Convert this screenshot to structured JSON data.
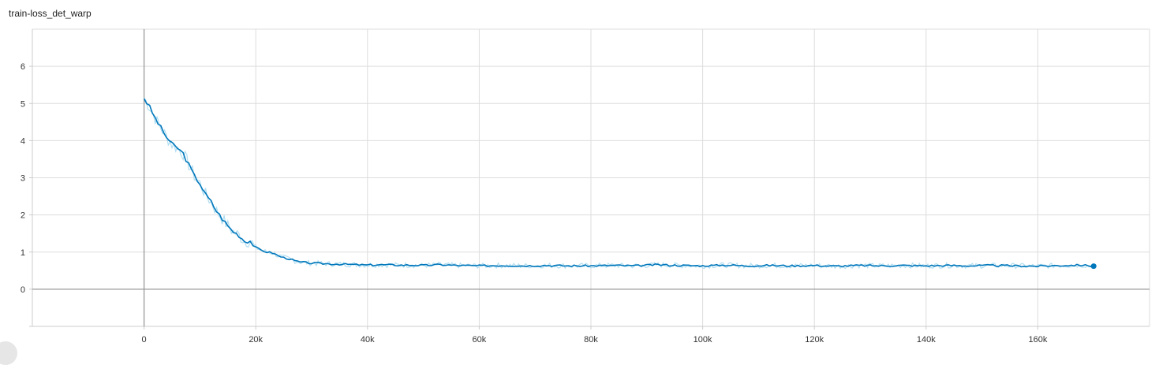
{
  "chart_data": {
    "type": "line",
    "title": "train-loss_det_warp",
    "xlabel": "",
    "ylabel": "",
    "xlim": [
      -20000,
      180000
    ],
    "ylim": [
      -1,
      7
    ],
    "grid": true,
    "x_ticks": [
      0,
      20000,
      40000,
      60000,
      80000,
      100000,
      120000,
      140000,
      160000
    ],
    "x_tick_labels": [
      "0",
      "20k",
      "40k",
      "60k",
      "80k",
      "100k",
      "120k",
      "140k",
      "160k"
    ],
    "y_ticks": [
      0,
      1,
      2,
      3,
      4,
      5,
      6
    ],
    "y_tick_labels": [
      "0",
      "1",
      "2",
      "3",
      "4",
      "5",
      "6"
    ],
    "series": [
      {
        "name": "",
        "color": "#0077bb",
        "raw_color": "#a9d9ef",
        "x": [
          0,
          1000,
          2000,
          3000,
          4000,
          5000,
          6000,
          7000,
          8000,
          9000,
          10000,
          11000,
          12000,
          13000,
          14000,
          15000,
          16000,
          17000,
          18000,
          19000,
          20000,
          21000,
          22000,
          23000,
          24000,
          25000,
          26000,
          27000,
          28000,
          30000,
          32000,
          34000,
          36000,
          38000,
          40000,
          42000,
          45000,
          48000,
          50000,
          53000,
          56000,
          60000,
          64000,
          68000,
          72000,
          76000,
          80000,
          84000,
          88000,
          92000,
          96000,
          100000,
          104000,
          108000,
          112000,
          116000,
          120000,
          124000,
          128000,
          132000,
          136000,
          140000,
          144000,
          148000,
          152000,
          156000,
          160000,
          164000,
          168000,
          170000
        ],
        "y": [
          5.15,
          4.9,
          4.6,
          4.35,
          4.1,
          3.9,
          3.8,
          3.65,
          3.35,
          3.05,
          2.85,
          2.55,
          2.35,
          2.1,
          1.9,
          1.7,
          1.55,
          1.45,
          1.3,
          1.3,
          1.12,
          1.05,
          1.0,
          0.98,
          0.9,
          0.85,
          0.82,
          0.76,
          0.73,
          0.7,
          0.69,
          0.68,
          0.67,
          0.66,
          0.65,
          0.66,
          0.65,
          0.65,
          0.64,
          0.66,
          0.64,
          0.63,
          0.64,
          0.63,
          0.64,
          0.63,
          0.63,
          0.64,
          0.63,
          0.66,
          0.64,
          0.63,
          0.65,
          0.63,
          0.64,
          0.63,
          0.64,
          0.62,
          0.64,
          0.63,
          0.64,
          0.63,
          0.64,
          0.63,
          0.64,
          0.63,
          0.62,
          0.64,
          0.65,
          0.62
        ]
      }
    ]
  }
}
